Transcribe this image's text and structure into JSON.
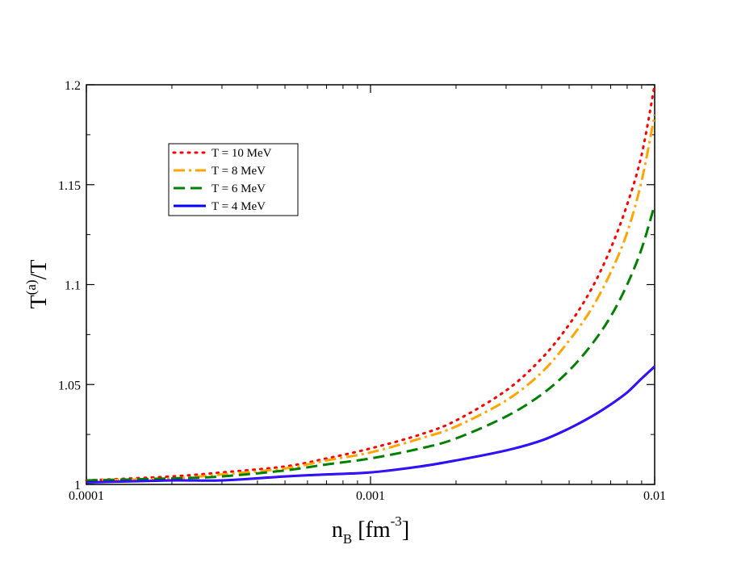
{
  "chart_data": {
    "type": "line",
    "title": "",
    "xlabel": {
      "base": "n",
      "sub": "B",
      "unit_pre": " [fm",
      "sup": "-3",
      "unit_post": "]"
    },
    "ylabel": {
      "base": "T",
      "sup": "(a)",
      "post": "/T"
    },
    "xscale": "log",
    "xlim": [
      0.0001,
      0.01
    ],
    "ylim": [
      1.0,
      1.2
    ],
    "x_ticks": [
      {
        "value": 0.0001,
        "label": "0.0001"
      },
      {
        "value": 0.001,
        "label": "0.001"
      },
      {
        "value": 0.01,
        "label": "0.01"
      }
    ],
    "y_ticks": [
      {
        "value": 1.0,
        "label": "1"
      },
      {
        "value": 1.05,
        "label": "1.05"
      },
      {
        "value": 1.1,
        "label": "1.1"
      },
      {
        "value": 1.15,
        "label": "1.15"
      },
      {
        "value": 1.2,
        "label": "1.2"
      }
    ],
    "legend_position": "top-left",
    "series": [
      {
        "name": "T = 10 MeV",
        "color": "#ff0000",
        "style": "dotted",
        "x": [
          0.0001,
          0.0002,
          0.0003,
          0.0005,
          0.0007,
          0.001,
          0.0015,
          0.002,
          0.003,
          0.004,
          0.005,
          0.006,
          0.007,
          0.008,
          0.009,
          0.01
        ],
        "y": [
          1.002,
          1.004,
          1.006,
          1.009,
          1.013,
          1.018,
          1.025,
          1.032,
          1.047,
          1.063,
          1.08,
          1.098,
          1.118,
          1.14,
          1.165,
          1.2
        ]
      },
      {
        "name": "T = 8 MeV",
        "color": "#ffa500",
        "style": "dashdot",
        "x": [
          0.0001,
          0.0002,
          0.0003,
          0.0005,
          0.0007,
          0.001,
          0.0015,
          0.002,
          0.003,
          0.004,
          0.005,
          0.006,
          0.007,
          0.008,
          0.009,
          0.01
        ],
        "y": [
          1.002,
          1.003,
          1.005,
          1.008,
          1.012,
          1.016,
          1.023,
          1.029,
          1.042,
          1.056,
          1.072,
          1.088,
          1.106,
          1.126,
          1.152,
          1.185
        ]
      },
      {
        "name": "T = 6 MeV",
        "color": "#008000",
        "style": "dashed",
        "x": [
          0.0001,
          0.0002,
          0.0003,
          0.0005,
          0.0007,
          0.001,
          0.0015,
          0.002,
          0.003,
          0.004,
          0.005,
          0.006,
          0.007,
          0.008,
          0.009,
          0.01
        ],
        "y": [
          1.002,
          1.003,
          1.004,
          1.007,
          1.01,
          1.013,
          1.018,
          1.023,
          1.034,
          1.045,
          1.057,
          1.07,
          1.084,
          1.1,
          1.118,
          1.14
        ]
      },
      {
        "name": "T = 4 MeV",
        "color": "#0000ff",
        "style": "solid",
        "x": [
          0.0001,
          0.0002,
          0.0003,
          0.0005,
          0.0007,
          0.001,
          0.0015,
          0.002,
          0.003,
          0.004,
          0.005,
          0.006,
          0.007,
          0.008,
          0.009,
          0.01
        ],
        "y": [
          1.001,
          1.002,
          1.002,
          1.004,
          1.005,
          1.006,
          1.009,
          1.012,
          1.017,
          1.022,
          1.028,
          1.034,
          1.04,
          1.046,
          1.053,
          1.059
        ]
      }
    ]
  }
}
